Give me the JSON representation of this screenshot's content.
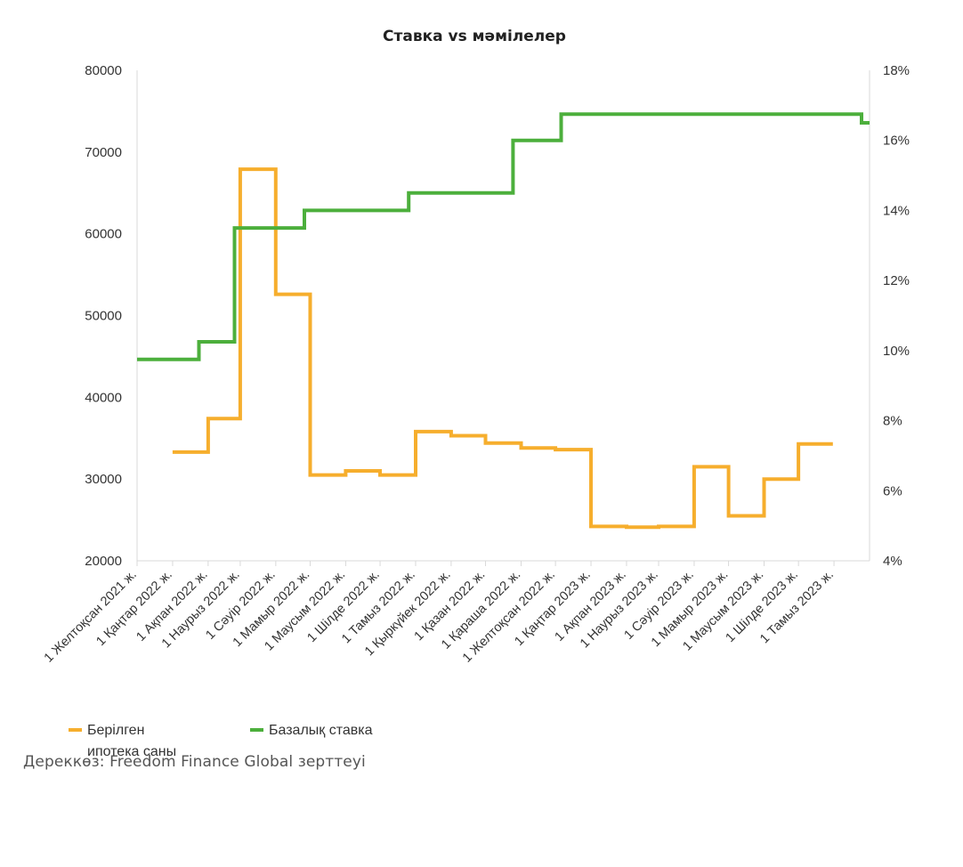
{
  "chart_data": {
    "type": "line",
    "title": "Ставка vs мәмілелер",
    "x_ticks": [
      "1 Желтоқсан 2021 ж.",
      "1 Қаңтар 2022 ж.",
      "1 Ақпан 2022 ж.",
      "1 Наурыз 2022 ж.",
      "1 Сәуір 2022 ж.",
      "1 Мамыр 2022 ж.",
      "1 Маусым 2022 ж.",
      "1 Шілде 2022 ж.",
      "1 Тамыз 2022 ж.",
      "1 Қыркүйек 2022 ж.",
      "1 Қазан 2022 ж.",
      "1 Қараша 2022 ж.",
      "1 Желтоқсан 2022 ж.",
      "1 Қаңтар 2023 ж.",
      "1 Ақпан 2023 ж.",
      "1 Наурыз 2023 ж.",
      "1 Сәуір 2023 ж.",
      "1 Мамыр 2023 ж.",
      "1 Маусым 2023 ж.",
      "1 Шілде 2023 ж.",
      "1 Тамыз 2023 ж."
    ],
    "y_left": {
      "ticks": [
        "20000",
        "30000",
        "40000",
        "50000",
        "60000",
        "70000",
        "80000"
      ],
      "ylim": [
        20000,
        80000
      ]
    },
    "y_right": {
      "ticks": [
        "4%",
        "6%",
        "8%",
        "10%",
        "12%",
        "14%",
        "16%",
        "18%"
      ],
      "ylim": [
        4,
        18
      ]
    },
    "x_range": [
      "2021-12-01",
      "2023-09-01"
    ],
    "grid": false,
    "legend_position": "bottom-left",
    "series": [
      {
        "name": "Берілген ипотека саны",
        "axis": "left",
        "color": "#f6ae2d",
        "step": "hv",
        "points": [
          [
            "2022-01-01",
            33300
          ],
          [
            "2022-02-01",
            37400
          ],
          [
            "2022-03-01",
            67900
          ],
          [
            "2022-04-01",
            52600
          ],
          [
            "2022-05-01",
            30500
          ],
          [
            "2022-06-01",
            31000
          ],
          [
            "2022-07-01",
            30500
          ],
          [
            "2022-08-01",
            35800
          ],
          [
            "2022-09-01",
            35300
          ],
          [
            "2022-10-01",
            34400
          ],
          [
            "2022-11-01",
            33800
          ],
          [
            "2022-12-01",
            33600
          ],
          [
            "2023-01-01",
            24200
          ],
          [
            "2023-02-01",
            24100
          ],
          [
            "2023-03-01",
            24200
          ],
          [
            "2023-04-01",
            31500
          ],
          [
            "2023-05-01",
            25500
          ],
          [
            "2023-06-01",
            30000
          ],
          [
            "2023-07-01",
            34300
          ],
          [
            "2023-07-31",
            34300
          ]
        ]
      },
      {
        "name": "Базалық ставка",
        "axis": "right",
        "color": "#4caf3c",
        "step": "hv",
        "points": [
          [
            "2021-12-01",
            9.75
          ],
          [
            "2022-01-24",
            10.25
          ],
          [
            "2022-02-24",
            13.5
          ],
          [
            "2022-04-26",
            14.0
          ],
          [
            "2022-07-26",
            14.5
          ],
          [
            "2022-10-25",
            16.0
          ],
          [
            "2022-12-06",
            16.75
          ],
          [
            "2023-08-25",
            16.5
          ],
          [
            "2023-09-01",
            16.5
          ]
        ]
      }
    ]
  },
  "legend": {
    "mortgage_line1": "Берілген",
    "mortgage_line2": "ипотека саны",
    "rate": "Базалық ставка"
  },
  "source": "Дереккөз: Freedom Finance Global зерттеуі"
}
